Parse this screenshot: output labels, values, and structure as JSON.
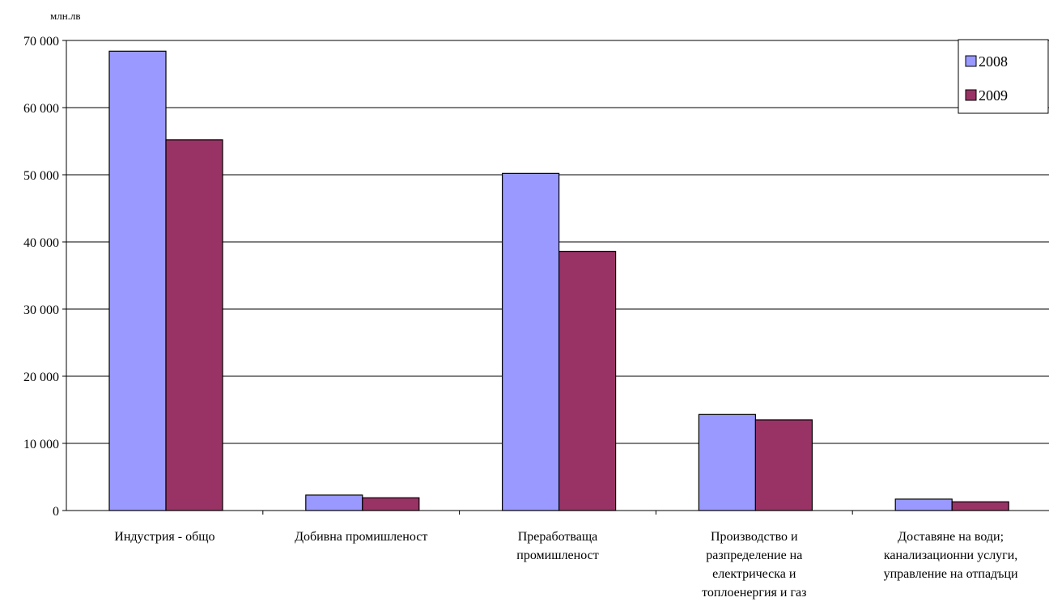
{
  "chart_data": {
    "type": "bar",
    "unit_label": "млн.лв",
    "categories": [
      [
        "Индустрия - общо"
      ],
      [
        "Добивна промишленост"
      ],
      [
        "Преработваща",
        "промишленост"
      ],
      [
        "Производство и",
        "разпределение на",
        "електрическа и",
        "топлоенергия и газ"
      ],
      [
        "Доставяне на води;",
        "канализационни услуги,",
        "управление на отпадъци"
      ]
    ],
    "series": [
      {
        "name": "2008",
        "color": "#9999ff",
        "values": [
          68400,
          2300,
          50200,
          14300,
          1700
        ]
      },
      {
        "name": "2009",
        "color": "#993366",
        "values": [
          55200,
          1900,
          38600,
          13500,
          1300
        ]
      }
    ],
    "ylim": [
      0,
      70000
    ],
    "yticks": [
      0,
      10000,
      20000,
      30000,
      40000,
      50000,
      60000,
      70000
    ],
    "ytick_labels": [
      "0",
      "10 000",
      "20 000",
      "30 000",
      "40 000",
      "50 000",
      "60 000",
      "70 000"
    ],
    "grid": true,
    "legend_position": "top-right"
  }
}
